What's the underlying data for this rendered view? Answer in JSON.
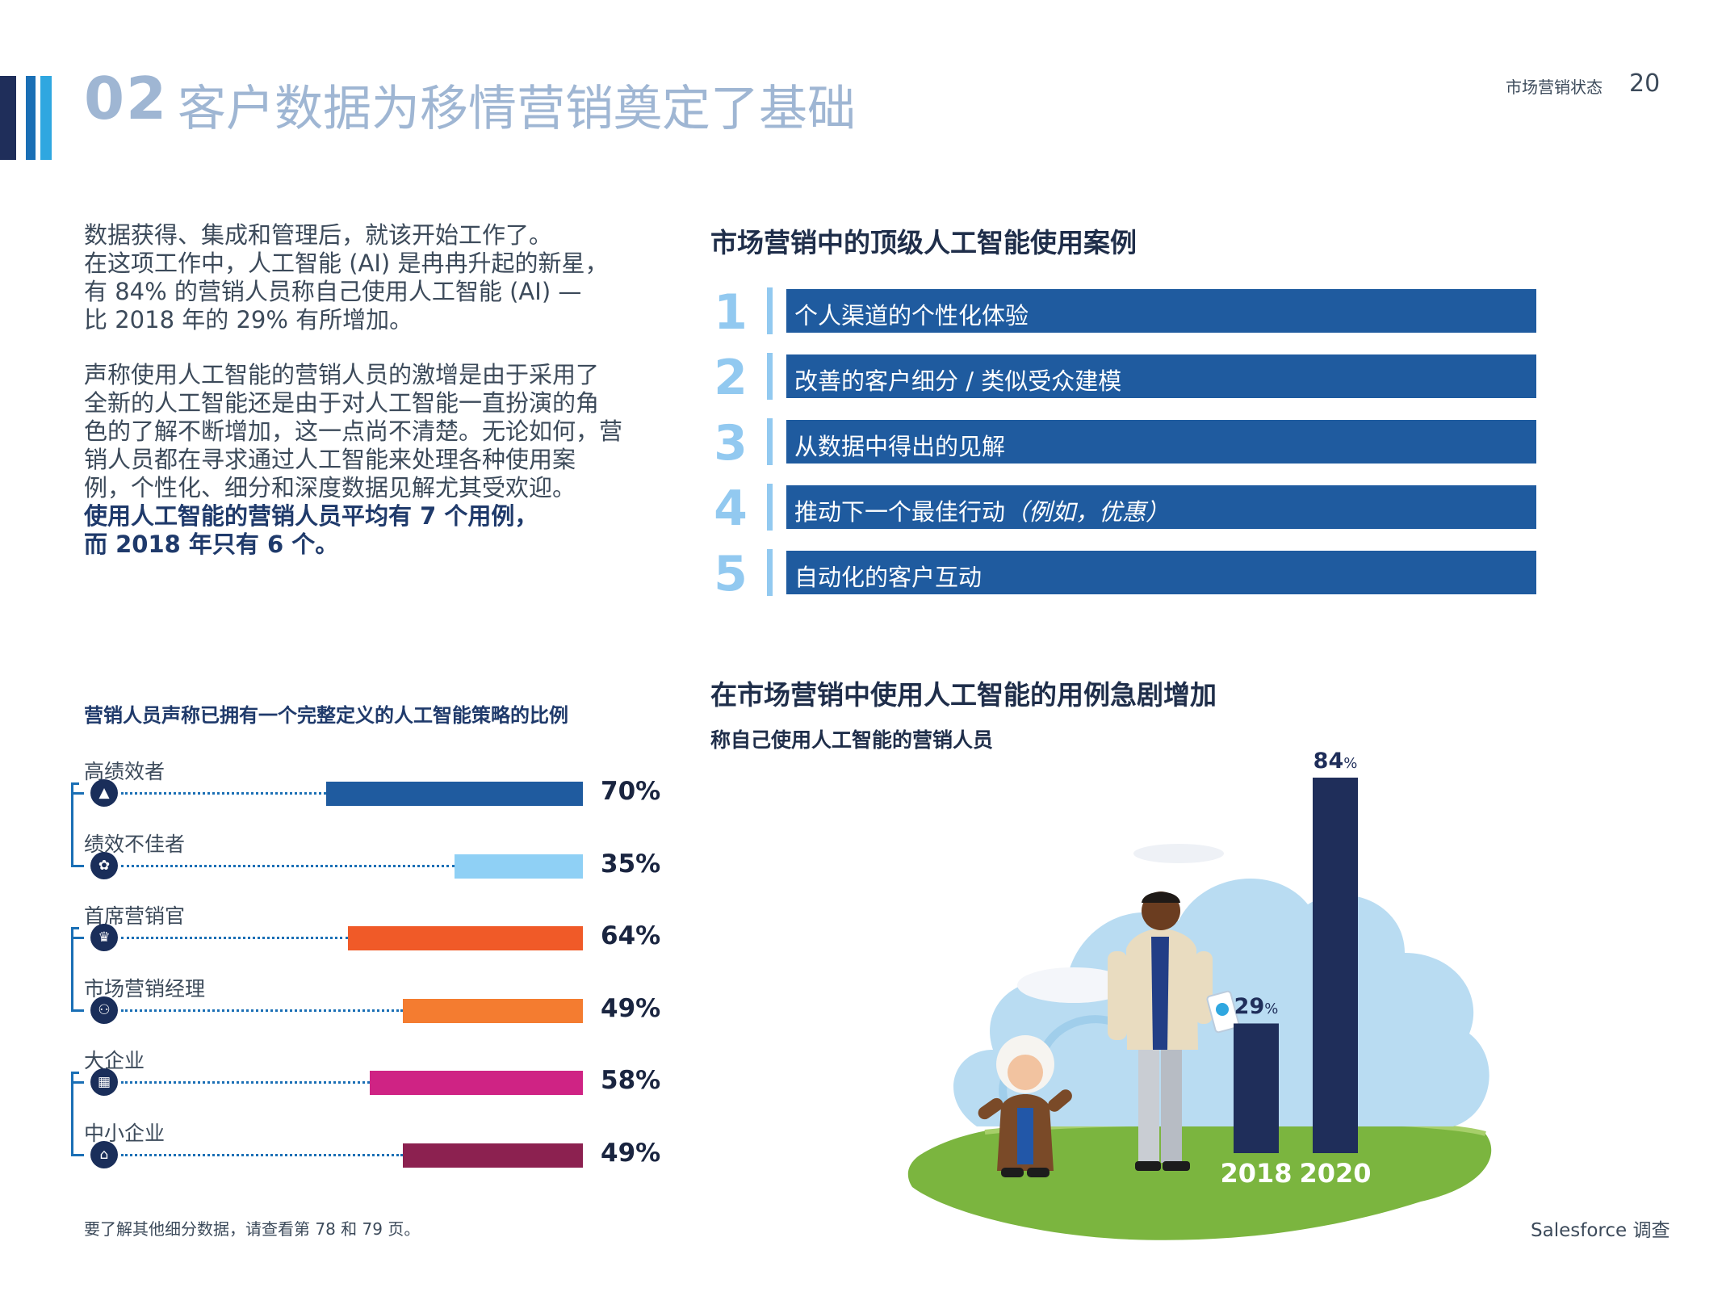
{
  "header": {
    "section_number": "02",
    "title": "客户数据为移情营销奠定了基础",
    "report_label": "市场营销状态",
    "page_number": "20"
  },
  "intro": {
    "paragraph1_lines": [
      "数据获得、集成和管理后，就该开始工作了。",
      "在这项工作中，人工智能 (AI) 是冉冉升起的新星，",
      "有 84% 的营销人员称自己使用人工智能 (AI) —",
      "比 2018 年的 29% 有所增加。"
    ],
    "paragraph2_lines": [
      "声称使用人工智能的营销人员的激增是由于采用了",
      "全新的人工智能还是由于对人工智能一直扮演的角",
      "色的了解不断增加，这一点尚不清楚。无论如何，营",
      "销人员都在寻求通过人工智能来处理各种使用案",
      "例，个性化、细分和深度数据见解尤其受欢迎。"
    ],
    "bold_lines": [
      "使用人工智能的营销人员平均有 7 个用例，",
      "而 2018 年只有 6 个。"
    ]
  },
  "use_cases": {
    "title": "市场营销中的顶级人工智能使用案例",
    "items": [
      {
        "rank": "1",
        "label": "个人渠道的个性化体验"
      },
      {
        "rank": "2",
        "label": "改善的客户细分 / 类似受众建模"
      },
      {
        "rank": "3",
        "label": "从数据中得出的见解"
      },
      {
        "rank": "4",
        "label": "推动下一个最佳行动",
        "label_italic": "（例如，优惠）"
      },
      {
        "rank": "5",
        "label": "自动化的客户互动"
      }
    ],
    "bar_color": "#1f5b9f",
    "rank_color": "#92c9f0"
  },
  "chart_data": [
    {
      "type": "bar",
      "title": "营销人员声称已拥有一个完整定义的人工智能策略的比例",
      "categories": [
        "高绩效者",
        "绩效不佳者",
        "首席营销官",
        "市场营销经理",
        "大企业",
        "中小企业"
      ],
      "values": [
        70,
        35,
        64,
        49,
        58,
        49
      ],
      "value_labels": [
        "70%",
        "35%",
        "64%",
        "49%",
        "58%",
        "49%"
      ],
      "colors": [
        "#1f5b9f",
        "#8fd0f5",
        "#f05a28",
        "#f47c30",
        "#cf2384",
        "#8c2150"
      ],
      "icons": [
        "mountain-icon",
        "wilted-plant-icon",
        "person-crown-icon",
        "team-icon",
        "building-icon",
        "storefront-icon"
      ],
      "ylim": [
        0,
        100
      ],
      "orientation": "horizontal"
    },
    {
      "type": "bar",
      "title": "在市场营销中使用人工智能的用例急剧增加",
      "subtitle": "称自己使用人工智能的营销人员",
      "categories": [
        "2018",
        "2020"
      ],
      "values": [
        29,
        84
      ],
      "value_labels": [
        "29",
        "84"
      ],
      "unit": "%",
      "color": "#1f2e5a",
      "ylim": [
        0,
        100
      ]
    }
  ],
  "footnote": "要了解其他细分数据，请查看第 78 和 79 页。",
  "footer": "Salesforce 调查"
}
